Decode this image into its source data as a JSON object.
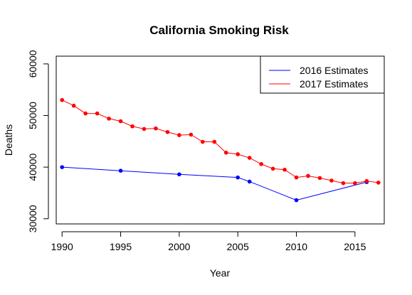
{
  "chart_data": {
    "type": "line",
    "title": "California Smoking Risk",
    "xlabel": "Year",
    "ylabel": "Deaths",
    "xlim": [
      1989.5,
      2017.5
    ],
    "ylim": [
      29000,
      61500
    ],
    "x_ticks": [
      1990,
      1995,
      2000,
      2005,
      2010,
      2015
    ],
    "y_ticks": [
      30000,
      40000,
      50000,
      60000
    ],
    "grid": false,
    "legend_position": "top-right",
    "series": [
      {
        "name": "2016 Estimates",
        "color": "#0000ff",
        "x": [
          1990,
          1995,
          2000,
          2005,
          2006,
          2010,
          2016
        ],
        "y": [
          40000,
          39300,
          38600,
          38000,
          37200,
          33600,
          37100
        ]
      },
      {
        "name": "2017 Estimates",
        "color": "#ff0000",
        "x": [
          1990,
          1991,
          1992,
          1993,
          1994,
          1995,
          1996,
          1997,
          1998,
          1999,
          2000,
          2001,
          2002,
          2003,
          2004,
          2005,
          2006,
          2007,
          2008,
          2009,
          2010,
          2011,
          2012,
          2013,
          2014,
          2015,
          2016,
          2017
        ],
        "y": [
          53000,
          51900,
          50400,
          50400,
          49400,
          48900,
          47900,
          47400,
          47500,
          46800,
          46200,
          46300,
          44900,
          44900,
          42800,
          42500,
          41800,
          40600,
          39700,
          39500,
          38000,
          38300,
          37900,
          37400,
          36900,
          36900,
          37300,
          37000
        ]
      }
    ]
  }
}
